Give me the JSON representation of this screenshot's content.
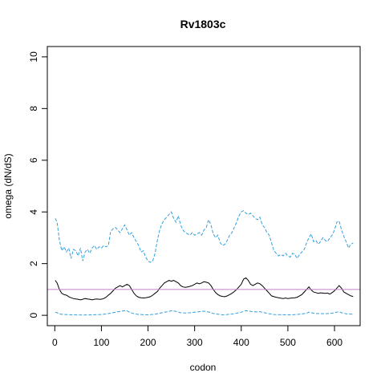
{
  "chart_data": {
    "type": "line",
    "title": "Rv1803c",
    "xlabel": "codon",
    "ylabel": "omega (dN/dS)",
    "xlim": [
      -16,
      655
    ],
    "ylim": [
      -0.4,
      10.4
    ],
    "xticks": [
      0,
      100,
      200,
      300,
      400,
      500,
      600
    ],
    "yticks": [
      0,
      2,
      4,
      6,
      8,
      10
    ],
    "grid": false,
    "reference_line": {
      "y": 1,
      "color": "#c47fc4"
    },
    "series": [
      {
        "color": "#33a0dd",
        "style": "dashed",
        "points": [
          [
            1,
            3.75
          ],
          [
            5,
            3.6
          ],
          [
            10,
            2.9
          ],
          [
            15,
            2.5
          ],
          [
            20,
            2.65
          ],
          [
            25,
            2.45
          ],
          [
            30,
            2.6
          ],
          [
            35,
            2.2
          ],
          [
            40,
            2.55
          ],
          [
            45,
            2.5
          ],
          [
            50,
            2.3
          ],
          [
            55,
            2.6
          ],
          [
            60,
            2.1
          ],
          [
            65,
            2.45
          ],
          [
            70,
            2.55
          ],
          [
            75,
            2.4
          ],
          [
            80,
            2.6
          ],
          [
            85,
            2.7
          ],
          [
            90,
            2.55
          ],
          [
            95,
            2.65
          ],
          [
            100,
            2.6
          ],
          [
            105,
            2.7
          ],
          [
            110,
            2.65
          ],
          [
            115,
            2.7
          ],
          [
            120,
            3.25
          ],
          [
            125,
            3.35
          ],
          [
            130,
            3.4
          ],
          [
            135,
            3.3
          ],
          [
            140,
            3.2
          ],
          [
            145,
            3.35
          ],
          [
            150,
            3.5
          ],
          [
            155,
            3.3
          ],
          [
            160,
            3.1
          ],
          [
            165,
            3.2
          ],
          [
            170,
            3.0
          ],
          [
            175,
            2.85
          ],
          [
            180,
            2.7
          ],
          [
            185,
            2.45
          ],
          [
            190,
            2.5
          ],
          [
            195,
            2.25
          ],
          [
            200,
            2.1
          ],
          [
            205,
            2.05
          ],
          [
            210,
            2.1
          ],
          [
            215,
            2.4
          ],
          [
            220,
            2.9
          ],
          [
            225,
            3.3
          ],
          [
            230,
            3.55
          ],
          [
            235,
            3.7
          ],
          [
            240,
            3.8
          ],
          [
            245,
            3.9
          ],
          [
            250,
            4.0
          ],
          [
            255,
            3.75
          ],
          [
            260,
            3.6
          ],
          [
            265,
            3.85
          ],
          [
            270,
            3.5
          ],
          [
            275,
            3.3
          ],
          [
            280,
            3.2
          ],
          [
            285,
            3.15
          ],
          [
            290,
            3.1
          ],
          [
            295,
            3.2
          ],
          [
            300,
            3.1
          ],
          [
            305,
            3.15
          ],
          [
            310,
            3.2
          ],
          [
            315,
            3.1
          ],
          [
            320,
            3.3
          ],
          [
            325,
            3.4
          ],
          [
            330,
            3.7
          ],
          [
            335,
            3.5
          ],
          [
            340,
            3.15
          ],
          [
            345,
            3.0
          ],
          [
            350,
            3.1
          ],
          [
            355,
            2.8
          ],
          [
            360,
            2.7
          ],
          [
            365,
            2.75
          ],
          [
            370,
            2.9
          ],
          [
            375,
            3.1
          ],
          [
            380,
            3.2
          ],
          [
            385,
            3.4
          ],
          [
            390,
            3.6
          ],
          [
            395,
            3.85
          ],
          [
            400,
            4.0
          ],
          [
            405,
            4.05
          ],
          [
            410,
            3.95
          ],
          [
            415,
            3.9
          ],
          [
            420,
            3.95
          ],
          [
            425,
            3.85
          ],
          [
            430,
            3.75
          ],
          [
            435,
            3.7
          ],
          [
            440,
            3.8
          ],
          [
            445,
            3.5
          ],
          [
            450,
            3.4
          ],
          [
            455,
            3.2
          ],
          [
            460,
            3.1
          ],
          [
            465,
            2.8
          ],
          [
            470,
            2.5
          ],
          [
            475,
            2.4
          ],
          [
            480,
            2.3
          ],
          [
            485,
            2.35
          ],
          [
            490,
            2.3
          ],
          [
            495,
            2.4
          ],
          [
            500,
            2.3
          ],
          [
            505,
            2.25
          ],
          [
            510,
            2.4
          ],
          [
            515,
            2.35
          ],
          [
            520,
            2.2
          ],
          [
            525,
            2.35
          ],
          [
            530,
            2.45
          ],
          [
            535,
            2.55
          ],
          [
            540,
            2.8
          ],
          [
            545,
            3.0
          ],
          [
            550,
            3.15
          ],
          [
            555,
            2.85
          ],
          [
            560,
            2.9
          ],
          [
            565,
            2.75
          ],
          [
            570,
            2.85
          ],
          [
            575,
            3.0
          ],
          [
            580,
            2.9
          ],
          [
            585,
            2.85
          ],
          [
            590,
            3.0
          ],
          [
            595,
            3.1
          ],
          [
            600,
            3.3
          ],
          [
            605,
            3.6
          ],
          [
            610,
            3.65
          ],
          [
            615,
            3.3
          ],
          [
            620,
            3.05
          ],
          [
            625,
            2.85
          ],
          [
            630,
            2.6
          ],
          [
            635,
            2.75
          ],
          [
            640,
            2.8
          ]
        ]
      },
      {
        "color": "#000000",
        "style": "solid",
        "points": [
          [
            1,
            1.35
          ],
          [
            5,
            1.25
          ],
          [
            10,
            1.0
          ],
          [
            15,
            0.85
          ],
          [
            20,
            0.8
          ],
          [
            25,
            0.78
          ],
          [
            30,
            0.72
          ],
          [
            35,
            0.68
          ],
          [
            40,
            0.65
          ],
          [
            45,
            0.63
          ],
          [
            50,
            0.62
          ],
          [
            55,
            0.6
          ],
          [
            60,
            0.62
          ],
          [
            65,
            0.65
          ],
          [
            70,
            0.63
          ],
          [
            75,
            0.62
          ],
          [
            80,
            0.6
          ],
          [
            85,
            0.62
          ],
          [
            90,
            0.63
          ],
          [
            95,
            0.62
          ],
          [
            100,
            0.62
          ],
          [
            105,
            0.65
          ],
          [
            110,
            0.7
          ],
          [
            115,
            0.78
          ],
          [
            120,
            0.85
          ],
          [
            125,
            0.95
          ],
          [
            130,
            1.05
          ],
          [
            135,
            1.1
          ],
          [
            140,
            1.15
          ],
          [
            145,
            1.1
          ],
          [
            150,
            1.15
          ],
          [
            155,
            1.2
          ],
          [
            160,
            1.15
          ],
          [
            165,
            1.0
          ],
          [
            170,
            0.85
          ],
          [
            175,
            0.75
          ],
          [
            180,
            0.7
          ],
          [
            185,
            0.68
          ],
          [
            190,
            0.67
          ],
          [
            195,
            0.68
          ],
          [
            200,
            0.7
          ],
          [
            205,
            0.72
          ],
          [
            210,
            0.78
          ],
          [
            215,
            0.85
          ],
          [
            220,
            0.92
          ],
          [
            225,
            1.05
          ],
          [
            230,
            1.15
          ],
          [
            235,
            1.25
          ],
          [
            240,
            1.3
          ],
          [
            245,
            1.35
          ],
          [
            250,
            1.32
          ],
          [
            255,
            1.35
          ],
          [
            260,
            1.3
          ],
          [
            265,
            1.25
          ],
          [
            270,
            1.15
          ],
          [
            275,
            1.1
          ],
          [
            280,
            1.08
          ],
          [
            285,
            1.1
          ],
          [
            290,
            1.12
          ],
          [
            295,
            1.15
          ],
          [
            300,
            1.2
          ],
          [
            305,
            1.25
          ],
          [
            310,
            1.22
          ],
          [
            315,
            1.25
          ],
          [
            320,
            1.3
          ],
          [
            325,
            1.28
          ],
          [
            330,
            1.25
          ],
          [
            335,
            1.15
          ],
          [
            340,
            1.0
          ],
          [
            345,
            0.88
          ],
          [
            350,
            0.8
          ],
          [
            355,
            0.75
          ],
          [
            360,
            0.73
          ],
          [
            365,
            0.72
          ],
          [
            370,
            0.75
          ],
          [
            375,
            0.8
          ],
          [
            380,
            0.85
          ],
          [
            385,
            0.92
          ],
          [
            390,
            1.0
          ],
          [
            395,
            1.1
          ],
          [
            400,
            1.2
          ],
          [
            405,
            1.4
          ],
          [
            410,
            1.45
          ],
          [
            415,
            1.35
          ],
          [
            420,
            1.2
          ],
          [
            425,
            1.15
          ],
          [
            430,
            1.2
          ],
          [
            435,
            1.25
          ],
          [
            440,
            1.22
          ],
          [
            445,
            1.15
          ],
          [
            450,
            1.05
          ],
          [
            455,
            0.95
          ],
          [
            460,
            0.85
          ],
          [
            465,
            0.75
          ],
          [
            470,
            0.72
          ],
          [
            475,
            0.7
          ],
          [
            480,
            0.68
          ],
          [
            485,
            0.66
          ],
          [
            490,
            0.65
          ],
          [
            495,
            0.67
          ],
          [
            500,
            0.65
          ],
          [
            505,
            0.66
          ],
          [
            510,
            0.67
          ],
          [
            515,
            0.68
          ],
          [
            520,
            0.7
          ],
          [
            525,
            0.75
          ],
          [
            530,
            0.8
          ],
          [
            535,
            0.9
          ],
          [
            540,
            1.0
          ],
          [
            545,
            1.1
          ],
          [
            550,
            0.98
          ],
          [
            555,
            0.9
          ],
          [
            560,
            0.88
          ],
          [
            565,
            0.85
          ],
          [
            570,
            0.87
          ],
          [
            575,
            0.86
          ],
          [
            580,
            0.85
          ],
          [
            585,
            0.86
          ],
          [
            590,
            0.82
          ],
          [
            595,
            0.88
          ],
          [
            600,
            0.95
          ],
          [
            605,
            1.05
          ],
          [
            610,
            1.15
          ],
          [
            615,
            1.05
          ],
          [
            620,
            0.9
          ],
          [
            625,
            0.85
          ],
          [
            630,
            0.8
          ],
          [
            635,
            0.75
          ],
          [
            640,
            0.73
          ]
        ]
      },
      {
        "color": "#33a0dd",
        "style": "dashed",
        "points": [
          [
            1,
            0.12
          ],
          [
            5,
            0.1
          ],
          [
            10,
            0.05
          ],
          [
            20,
            0.03
          ],
          [
            40,
            0.02
          ],
          [
            60,
            0.01
          ],
          [
            80,
            0.02
          ],
          [
            100,
            0.03
          ],
          [
            110,
            0.05
          ],
          [
            120,
            0.08
          ],
          [
            130,
            0.12
          ],
          [
            140,
            0.15
          ],
          [
            150,
            0.18
          ],
          [
            155,
            0.17
          ],
          [
            160,
            0.12
          ],
          [
            170,
            0.06
          ],
          [
            180,
            0.03
          ],
          [
            200,
            0.02
          ],
          [
            215,
            0.04
          ],
          [
            225,
            0.08
          ],
          [
            235,
            0.12
          ],
          [
            245,
            0.15
          ],
          [
            250,
            0.18
          ],
          [
            260,
            0.15
          ],
          [
            270,
            0.1
          ],
          [
            280,
            0.09
          ],
          [
            290,
            0.1
          ],
          [
            300,
            0.12
          ],
          [
            310,
            0.14
          ],
          [
            320,
            0.16
          ],
          [
            330,
            0.13
          ],
          [
            340,
            0.07
          ],
          [
            350,
            0.04
          ],
          [
            360,
            0.02
          ],
          [
            370,
            0.03
          ],
          [
            380,
            0.05
          ],
          [
            390,
            0.08
          ],
          [
            400,
            0.12
          ],
          [
            410,
            0.18
          ],
          [
            420,
            0.15
          ],
          [
            430,
            0.13
          ],
          [
            440,
            0.14
          ],
          [
            450,
            0.1
          ],
          [
            460,
            0.06
          ],
          [
            470,
            0.03
          ],
          [
            490,
            0.02
          ],
          [
            510,
            0.02
          ],
          [
            530,
            0.05
          ],
          [
            540,
            0.08
          ],
          [
            545,
            0.12
          ],
          [
            550,
            0.1
          ],
          [
            560,
            0.07
          ],
          [
            580,
            0.06
          ],
          [
            595,
            0.08
          ],
          [
            605,
            0.12
          ],
          [
            610,
            0.14
          ],
          [
            615,
            0.1
          ],
          [
            625,
            0.06
          ],
          [
            640,
            0.04
          ]
        ]
      }
    ]
  }
}
